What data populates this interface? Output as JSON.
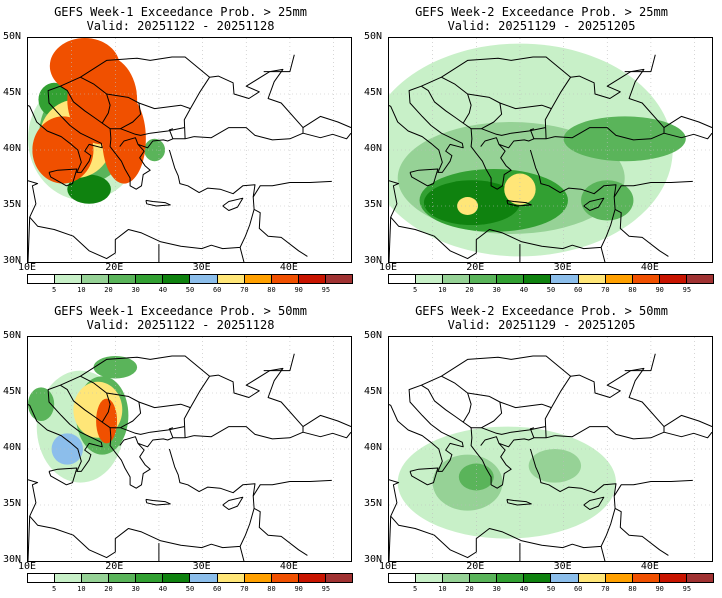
{
  "panels": [
    {
      "id": "p1",
      "title": "GEFS Week-1 Exceedance Prob. > 25mm",
      "valid": "Valid: 20251122 - 20251128",
      "probability_blobs": [
        {
          "lon": 16.5,
          "lat": 41.0,
          "rx": 6.5,
          "ry": 5.5,
          "level": 1
        },
        {
          "lon": 16.5,
          "lat": 41.5,
          "rx": 5.2,
          "ry": 4.5,
          "level": 3
        },
        {
          "lon": 15.5,
          "lat": 41.0,
          "rx": 4.2,
          "ry": 3.5,
          "level": 7
        },
        {
          "lon": 14.0,
          "lat": 40.0,
          "rx": 3.5,
          "ry": 3.0,
          "level": 9
        },
        {
          "lon": 18.5,
          "lat": 44.5,
          "rx": 4.0,
          "ry": 4.0,
          "level": 9
        },
        {
          "lon": 21.0,
          "lat": 41.0,
          "rx": 2.5,
          "ry": 4.0,
          "level": 9
        },
        {
          "lon": 16.5,
          "lat": 47.5,
          "rx": 4.0,
          "ry": 2.5,
          "level": 9
        },
        {
          "lon": 13.0,
          "lat": 44.5,
          "rx": 1.8,
          "ry": 1.5,
          "level": 4
        },
        {
          "lon": 24.5,
          "lat": 40.0,
          "rx": 1.2,
          "ry": 1.0,
          "level": 3
        },
        {
          "lon": 17.0,
          "lat": 36.5,
          "rx": 2.5,
          "ry": 1.3,
          "level": 5
        }
      ]
    },
    {
      "id": "p2",
      "title": "GEFS Week-2 Exceedance Prob. > 25mm",
      "valid": "Valid: 20251129 - 20251205",
      "probability_blobs": [
        {
          "lon": 25.0,
          "lat": 40.0,
          "rx": 17.5,
          "ry": 9.5,
          "level": 1
        },
        {
          "lon": 24.0,
          "lat": 37.5,
          "rx": 13.0,
          "ry": 5.0,
          "level": 2
        },
        {
          "lon": 22.0,
          "lat": 35.5,
          "rx": 8.5,
          "ry": 2.8,
          "level": 4
        },
        {
          "lon": 19.5,
          "lat": 35.3,
          "rx": 5.5,
          "ry": 2.0,
          "level": 5
        },
        {
          "lon": 25.0,
          "lat": 36.5,
          "rx": 1.8,
          "ry": 1.4,
          "level": 7
        },
        {
          "lon": 19.0,
          "lat": 35.0,
          "rx": 1.2,
          "ry": 0.8,
          "level": 7
        },
        {
          "lon": 37.0,
          "lat": 41.0,
          "rx": 7.0,
          "ry": 2.0,
          "level": 3
        },
        {
          "lon": 35.0,
          "lat": 35.5,
          "rx": 3.0,
          "ry": 1.8,
          "level": 3
        }
      ]
    },
    {
      "id": "p3",
      "title": "GEFS Week-1 Exceedance Prob. > 50mm",
      "valid": "Valid: 20251122 - 20251128",
      "probability_blobs": [
        {
          "lon": 16.0,
          "lat": 42.0,
          "rx": 5.0,
          "ry": 5.0,
          "level": 1
        },
        {
          "lon": 18.5,
          "lat": 43.0,
          "rx": 3.0,
          "ry": 3.5,
          "level": 3
        },
        {
          "lon": 18.0,
          "lat": 43.5,
          "rx": 2.8,
          "ry": 2.5,
          "level": 7
        },
        {
          "lon": 19.0,
          "lat": 42.5,
          "rx": 1.2,
          "ry": 2.0,
          "level": 9
        },
        {
          "lon": 14.5,
          "lat": 40.0,
          "rx": 1.8,
          "ry": 1.4,
          "level": 6
        },
        {
          "lon": 20.0,
          "lat": 47.3,
          "rx": 2.5,
          "ry": 1.0,
          "level": 3
        },
        {
          "lon": 11.5,
          "lat": 44.0,
          "rx": 1.5,
          "ry": 1.5,
          "level": 3
        }
      ]
    },
    {
      "id": "p4",
      "title": "GEFS Week-2 Exceedance Prob. > 50mm",
      "valid": "Valid: 20251129 - 20251205",
      "probability_blobs": [
        {
          "lon": 23.5,
          "lat": 37.0,
          "rx": 12.5,
          "ry": 5.0,
          "level": 1
        },
        {
          "lon": 19.0,
          "lat": 37.0,
          "rx": 4.0,
          "ry": 2.5,
          "level": 2
        },
        {
          "lon": 20.0,
          "lat": 37.5,
          "rx": 2.0,
          "ry": 1.2,
          "level": 3
        },
        {
          "lon": 29.0,
          "lat": 38.5,
          "rx": 3.0,
          "ry": 1.5,
          "level": 2
        }
      ]
    }
  ],
  "map_extent": {
    "lon_min": 10,
    "lon_max": 47,
    "lat_min": 30,
    "lat_max": 50
  },
  "lat_labels": [
    "50N",
    "45N",
    "40N",
    "35N",
    "30N"
  ],
  "lon_labels": [
    "10E",
    "20E",
    "30E",
    "40E"
  ],
  "colorbar": {
    "colors": [
      "#ffffff",
      "#c8f0c8",
      "#96d296",
      "#5ab45a",
      "#32a032",
      "#0f820f",
      "#8cbeeb",
      "#ffe678",
      "#ffa000",
      "#f05000",
      "#c81400",
      "#a03232"
    ],
    "labels": [
      "5",
      "10",
      "20",
      "30",
      "40",
      "50",
      "60",
      "70",
      "80",
      "90",
      "95"
    ]
  }
}
